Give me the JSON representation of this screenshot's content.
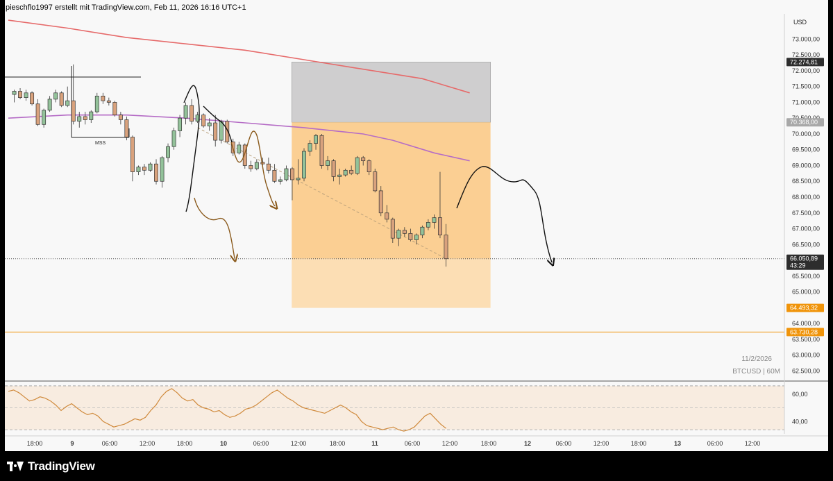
{
  "header": {
    "text": "pieschflo1997 erstellt mit TradingView.com, Feb 11, 2026 16:16 UTC+1"
  },
  "footer": {
    "brand": "TradingView"
  },
  "chart_data": {
    "type": "candlestick",
    "symbol_label": "BTCUSD | 60M",
    "date_label": "11/2/2026",
    "currency": "USD",
    "ylim": [
      62200,
      73800
    ],
    "y_ticks": [
      "73.000,00",
      "72.500,00",
      "72.000,00",
      "71.500,00",
      "71.000,00",
      "70.500,00",
      "70.000,00",
      "69.500,00",
      "69.000,00",
      "68.500,00",
      "68.000,00",
      "67.500,00",
      "67.000,00",
      "66.500,00",
      "66.000,00",
      "65.500,00",
      "65.000,00",
      "64.500,00",
      "64.000,00",
      "63.500,00",
      "63.000,00",
      "62.500,00"
    ],
    "x_ticks": [
      "18:00",
      "9",
      "06:00",
      "12:00",
      "18:00",
      "10",
      "06:00",
      "12:00",
      "18:00",
      "11",
      "06:00",
      "12:00",
      "18:00",
      "12",
      "06:00",
      "12:00",
      "18:00",
      "13",
      "06:00",
      "12:00"
    ],
    "price_tags": [
      {
        "value": 72274.81,
        "label": "72.274,81",
        "color": "#2d2d2d"
      },
      {
        "value": 70368.0,
        "label": "70.368,00",
        "color": "#a8a8a8"
      },
      {
        "value": 66050.89,
        "label": "66.050,89",
        "sub": "43:29",
        "color": "#2d2d2d"
      },
      {
        "value": 64493.32,
        "label": "64.493,32",
        "color": "#f0940a"
      },
      {
        "value": 63730.28,
        "label": "63.730,28",
        "color": "#f0940a"
      }
    ],
    "zones": [
      {
        "y_top": 72274.81,
        "y_bottom": 70368,
        "x_start": 36.8,
        "x_end": 62.3,
        "color": "#cfcecf"
      },
      {
        "y_top": 70368,
        "y_bottom": 66050.89,
        "x_start": 36.8,
        "x_end": 62.3,
        "color": "#fbcf93"
      },
      {
        "y_top": 66050.89,
        "y_bottom": 64493.32,
        "x_start": 36.8,
        "x_end": 62.3,
        "color": "#fcdeb4"
      }
    ],
    "horizontal_lines": [
      {
        "value": 63730.28,
        "style": "solid",
        "color": "#f0940a"
      },
      {
        "value": 66050.89,
        "style": "dotted",
        "color": "#555555"
      }
    ],
    "mss_label": "MSS",
    "candles": [
      [
        1,
        71250,
        71400,
        71000,
        71350
      ],
      [
        2,
        71350,
        71450,
        71100,
        71150
      ],
      [
        3,
        71150,
        71400,
        71050,
        71300
      ],
      [
        4,
        71300,
        71350,
        70900,
        70950
      ],
      [
        5,
        70950,
        71100,
        70250,
        70300
      ],
      [
        6,
        70300,
        70800,
        70200,
        70750
      ],
      [
        7,
        70750,
        71200,
        70700,
        71100
      ],
      [
        8,
        71100,
        71400,
        71000,
        71300
      ],
      [
        9,
        71300,
        71350,
        70850,
        70900
      ],
      [
        10,
        70900,
        71500,
        70850,
        71050
      ],
      [
        11,
        71050,
        72200,
        70300,
        70400
      ],
      [
        12,
        70400,
        70700,
        70200,
        70550
      ],
      [
        13,
        70550,
        70700,
        70300,
        70450
      ],
      [
        14,
        70450,
        70750,
        70350,
        70700
      ],
      [
        15,
        70700,
        71300,
        70650,
        71200
      ],
      [
        16,
        71200,
        71300,
        70950,
        71050
      ],
      [
        17,
        71050,
        71150,
        70900,
        71000
      ],
      [
        18,
        71000,
        71050,
        70550,
        70600
      ],
      [
        19,
        70600,
        70700,
        70300,
        70450
      ],
      [
        20,
        70450,
        70550,
        69800,
        69900
      ],
      [
        21,
        69900,
        69950,
        68500,
        68800
      ],
      [
        22,
        68800,
        69000,
        68700,
        68950
      ],
      [
        23,
        68950,
        69050,
        68700,
        68850
      ],
      [
        24,
        68850,
        69100,
        68800,
        69050
      ],
      [
        25,
        69050,
        69200,
        68400,
        68500
      ],
      [
        26,
        68500,
        69300,
        68300,
        69250
      ],
      [
        27,
        69250,
        69700,
        69100,
        69600
      ],
      [
        28,
        69600,
        70200,
        69500,
        70100
      ],
      [
        29,
        70100,
        70600,
        69900,
        70500
      ],
      [
        30,
        70500,
        71000,
        70300,
        70900
      ],
      [
        31,
        70900,
        71100,
        70300,
        70400
      ],
      [
        32,
        70400,
        70700,
        70350,
        70600
      ],
      [
        33,
        70600,
        70650,
        70200,
        70250
      ],
      [
        34,
        70250,
        70500,
        70100,
        70350
      ],
      [
        35,
        70350,
        70600,
        69600,
        69800
      ],
      [
        36,
        69800,
        70450,
        69700,
        70400
      ],
      [
        37,
        70400,
        70450,
        69700,
        69750
      ],
      [
        38,
        69750,
        69850,
        69300,
        69400
      ],
      [
        39,
        69400,
        69750,
        69350,
        69650
      ],
      [
        40,
        69650,
        69700,
        68900,
        69000
      ],
      [
        41,
        69000,
        69150,
        68800,
        68900
      ],
      [
        42,
        68900,
        69200,
        68850,
        69100
      ],
      [
        43,
        69100,
        69250,
        68900,
        69050
      ],
      [
        44,
        69050,
        69250,
        68750,
        68850
      ],
      [
        45,
        68850,
        69050,
        68450,
        68500
      ],
      [
        46,
        68500,
        68650,
        68400,
        68550
      ],
      [
        47,
        68550,
        69000,
        68500,
        68900
      ],
      [
        48,
        68900,
        68950,
        67900,
        68550
      ],
      [
        49,
        68550,
        69200,
        68400,
        68600
      ],
      [
        50,
        68600,
        69550,
        68500,
        69450
      ],
      [
        51,
        69450,
        69800,
        69300,
        69700
      ],
      [
        52,
        69700,
        70000,
        69500,
        69950
      ],
      [
        53,
        69950,
        70000,
        68900,
        69000
      ],
      [
        54,
        69000,
        69300,
        68850,
        69150
      ],
      [
        55,
        69150,
        69200,
        68500,
        68650
      ],
      [
        56,
        68650,
        68900,
        68400,
        68700
      ],
      [
        57,
        68700,
        68900,
        68650,
        68850
      ],
      [
        58,
        68850,
        69000,
        68700,
        68750
      ],
      [
        59,
        68750,
        69300,
        68700,
        69250
      ],
      [
        60,
        69250,
        69300,
        69000,
        69150
      ],
      [
        61,
        69150,
        69200,
        68700,
        68800
      ],
      [
        62,
        68800,
        68900,
        68150,
        68200
      ],
      [
        63,
        68200,
        68350,
        67400,
        67500
      ],
      [
        64,
        67500,
        67750,
        67200,
        67300
      ],
      [
        65,
        67300,
        67350,
        66550,
        66700
      ],
      [
        66,
        66700,
        67000,
        66450,
        66950
      ],
      [
        67,
        66950,
        67050,
        66750,
        66850
      ],
      [
        68,
        66850,
        67000,
        66600,
        66650
      ],
      [
        69,
        66650,
        66850,
        66500,
        66800
      ],
      [
        70,
        66800,
        67100,
        66700,
        67050
      ],
      [
        71,
        67050,
        67300,
        66950,
        67200
      ],
      [
        72,
        67200,
        67450,
        67000,
        67350
      ],
      [
        73,
        67350,
        68800,
        66700,
        66800
      ],
      [
        74,
        66800,
        67150,
        65800,
        66050
      ]
    ],
    "ema_red": [
      [
        0,
        73600
      ],
      [
        10,
        73350
      ],
      [
        20,
        73050
      ],
      [
        30,
        72850
      ],
      [
        40,
        72650
      ],
      [
        50,
        72350
      ],
      [
        60,
        72050
      ],
      [
        70,
        71750
      ],
      [
        78,
        71300
      ]
    ],
    "ema_purple": [
      [
        0,
        70500
      ],
      [
        10,
        70600
      ],
      [
        20,
        70600
      ],
      [
        30,
        70500
      ],
      [
        40,
        70350
      ],
      [
        50,
        70200
      ],
      [
        60,
        70000
      ],
      [
        65,
        69800
      ],
      [
        72,
        69400
      ],
      [
        78,
        69150
      ]
    ],
    "rsi": {
      "ylim": [
        30,
        68
      ],
      "ticks": [
        "60,00",
        "40,00"
      ],
      "upper_band": 66,
      "lower_band": 34,
      "values": [
        62,
        63,
        61,
        58,
        55,
        56,
        58,
        57,
        55,
        52,
        48,
        51,
        53,
        50,
        47,
        45,
        46,
        44,
        40,
        38,
        36,
        37,
        38,
        40,
        42,
        41,
        43,
        48,
        52,
        58,
        62,
        64,
        61,
        57,
        55,
        56,
        52,
        50,
        49,
        47,
        48,
        45,
        43,
        44,
        46,
        49,
        50,
        52,
        55,
        58,
        61,
        63,
        60,
        57,
        55,
        52,
        50,
        49,
        48,
        47,
        46,
        48,
        50,
        52,
        50,
        47,
        45,
        40,
        37,
        36,
        35,
        34,
        35,
        36,
        34,
        33,
        34,
        36,
        40,
        44,
        46,
        42,
        38,
        35
      ]
    },
    "annotations": [
      {
        "type": "dashed_trend",
        "from": [
          32,
          70200
        ],
        "to": [
          74,
          66050
        ],
        "color": "#b9a07b"
      }
    ]
  }
}
